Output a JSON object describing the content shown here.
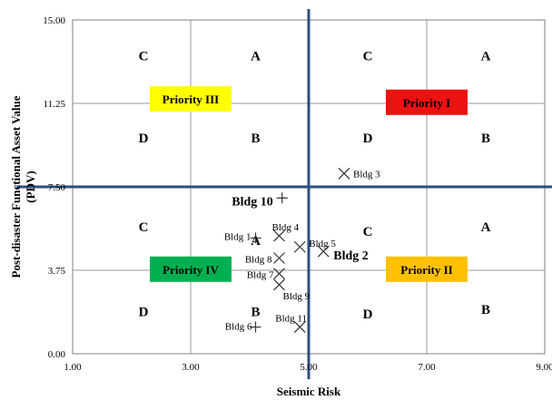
{
  "chart_data": {
    "type": "scatter",
    "title": "",
    "xlabel": "Seismic Risk",
    "ylabel": "Post-disaster Functional Asset Value (PDV)",
    "xlim": [
      1,
      9
    ],
    "ylim": [
      0,
      15
    ],
    "x_ticks": [
      "1.00",
      "3.00",
      "5.00",
      "7.00",
      "9.00"
    ],
    "y_ticks": [
      "0.00",
      "3.75",
      "7.50",
      "11.25",
      "15.00"
    ],
    "grid": true,
    "divider_lines": {
      "x": 5.0,
      "y": 7.5,
      "color": "#2e4e7e"
    },
    "quadrant_letters": [
      {
        "letter": "C",
        "x": 2.2,
        "y": 13.4
      },
      {
        "letter": "A",
        "x": 4.1,
        "y": 13.4
      },
      {
        "letter": "C",
        "x": 6.0,
        "y": 13.4
      },
      {
        "letter": "A",
        "x": 8.0,
        "y": 13.4
      },
      {
        "letter": "D",
        "x": 2.2,
        "y": 9.7
      },
      {
        "letter": "B",
        "x": 4.1,
        "y": 9.7
      },
      {
        "letter": "D",
        "x": 6.0,
        "y": 9.7
      },
      {
        "letter": "B",
        "x": 8.0,
        "y": 9.7
      },
      {
        "letter": "C",
        "x": 2.2,
        "y": 5.7
      },
      {
        "letter": "A",
        "x": 4.1,
        "y": 5.1
      },
      {
        "letter": "C",
        "x": 6.0,
        "y": 5.5
      },
      {
        "letter": "A",
        "x": 8.0,
        "y": 5.7
      },
      {
        "letter": "D",
        "x": 2.2,
        "y": 1.9
      },
      {
        "letter": "B",
        "x": 4.1,
        "y": 1.9
      },
      {
        "letter": "D",
        "x": 6.0,
        "y": 1.8
      },
      {
        "letter": "B",
        "x": 8.0,
        "y": 2.0
      }
    ],
    "priority_labels": [
      {
        "label": "Priority III",
        "x": 3.0,
        "y": 11.45,
        "color": "#ffff00"
      },
      {
        "label": "Priority I",
        "x": 7.0,
        "y": 11.3,
        "color": "#ee1111"
      },
      {
        "label": "Priority IV",
        "x": 3.0,
        "y": 3.8,
        "color": "#00b050"
      },
      {
        "label": "Priority II",
        "x": 7.0,
        "y": 3.8,
        "color": "#ffc000"
      }
    ],
    "points": [
      {
        "name": "Bldg 1",
        "x": 4.1,
        "y": 5.2,
        "marker": "+",
        "bold": false
      },
      {
        "name": "Bldg 2",
        "x": 5.25,
        "y": 4.6,
        "marker": "x",
        "bold": true
      },
      {
        "name": "Bldg 3",
        "x": 5.6,
        "y": 8.1,
        "marker": "x",
        "bold": false
      },
      {
        "name": "Bldg 4",
        "x": 4.5,
        "y": 5.3,
        "marker": "x",
        "bold": false
      },
      {
        "name": "Bldg 5",
        "x": 4.85,
        "y": 4.8,
        "marker": "x",
        "bold": false
      },
      {
        "name": "Bldg 6",
        "x": 4.1,
        "y": 1.2,
        "marker": "+",
        "bold": false
      },
      {
        "name": "Bldg 7",
        "x": 4.5,
        "y": 3.6,
        "marker": "x",
        "bold": false
      },
      {
        "name": "Bldg 8",
        "x": 4.5,
        "y": 4.3,
        "marker": "x",
        "bold": false
      },
      {
        "name": "Bldg 9",
        "x": 4.5,
        "y": 3.1,
        "marker": "x",
        "bold": false
      },
      {
        "name": "Bldg 10",
        "x": 4.55,
        "y": 7.0,
        "marker": "+",
        "bold": true
      },
      {
        "name": "Bldg 11",
        "x": 4.85,
        "y": 1.2,
        "marker": "x",
        "bold": false
      }
    ]
  }
}
